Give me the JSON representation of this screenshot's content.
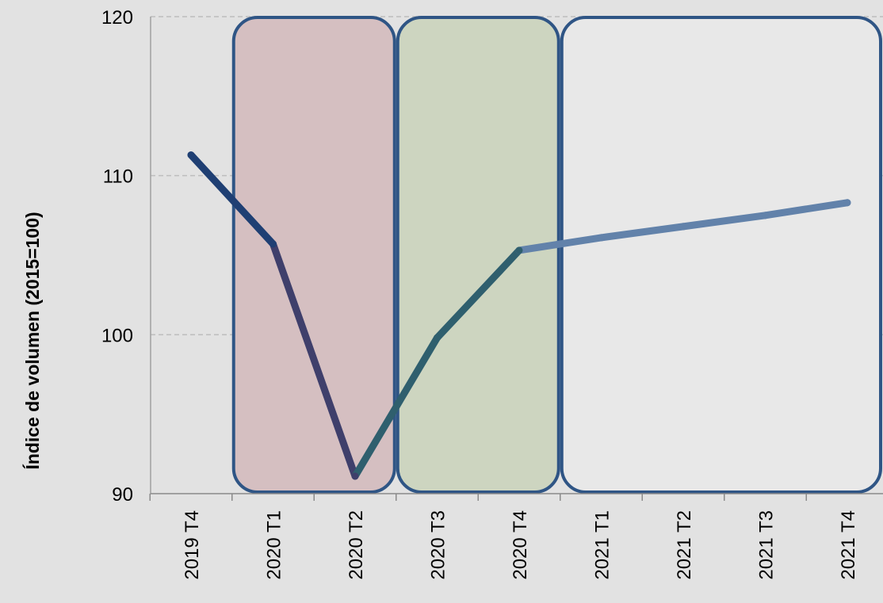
{
  "chart_data": {
    "type": "line",
    "title": "",
    "xlabel": "",
    "ylabel": "Índice de volumen (2015=100)",
    "categories": [
      "2019 T4",
      "2020 T1",
      "2020 T2",
      "2020 T3",
      "2020 T4",
      "2021 T1",
      "2021 T2",
      "2021 T3",
      "2021 T4"
    ],
    "series": [
      {
        "values": [
          111.3,
          105.7,
          91.1,
          99.8,
          105.3,
          106.1,
          106.8,
          107.5,
          108.3
        ]
      }
    ],
    "ylim": [
      90,
      120
    ],
    "yticks": [
      90,
      100,
      110,
      120
    ],
    "grid": true,
    "legend": "none",
    "line_colors": [
      "#1f3f73",
      "#3f3f6b",
      "#2f5f6e",
      "#6282aa"
    ],
    "highlight_regions": [
      {
        "from": "2020 T1",
        "to": "2020 T2",
        "fill": "#d5bfc1"
      },
      {
        "from": "2020 T3",
        "to": "2020 T4",
        "fill": "#cdd5c0"
      },
      {
        "from": "2021 T1",
        "to": "2021 T4",
        "fill": "#e8e8e8"
      }
    ],
    "region_border_color": "#2f5585"
  }
}
